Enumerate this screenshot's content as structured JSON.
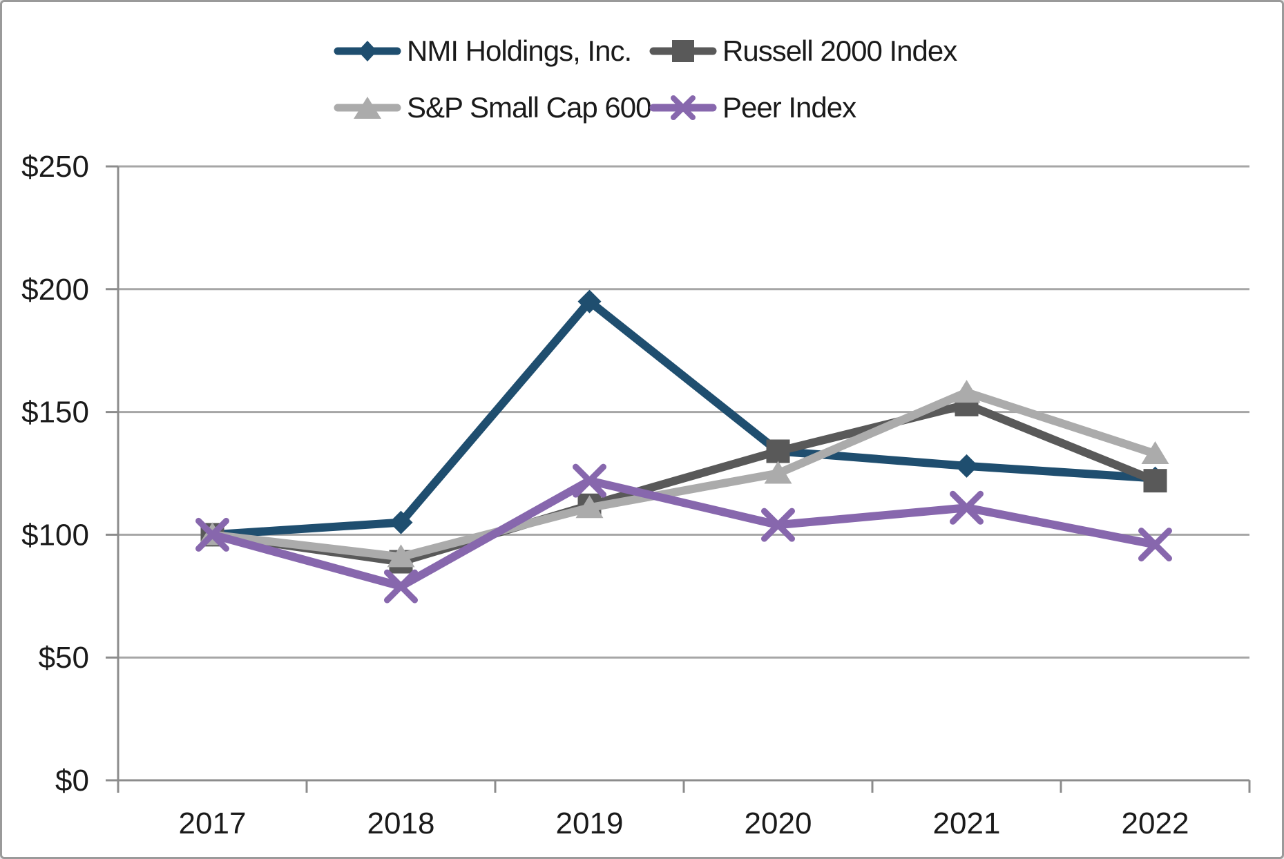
{
  "chart_data": {
    "type": "line",
    "title": "",
    "categories": [
      "2017",
      "2018",
      "2019",
      "2020",
      "2021",
      "2022"
    ],
    "series": [
      {
        "name": "NMI Holdings, Inc.",
        "marker": "diamond",
        "color": "#1F4E6F",
        "values": [
          100,
          105,
          195,
          134,
          128,
          123
        ]
      },
      {
        "name": "Russell 2000 Index",
        "marker": "square",
        "color": "#595959",
        "values": [
          100,
          89,
          112,
          134,
          153,
          122
        ]
      },
      {
        "name": "S&P Small Cap 600",
        "marker": "triangle",
        "color": "#ABABAB",
        "values": [
          100,
          91,
          111,
          125,
          158,
          133
        ]
      },
      {
        "name": "Peer Index",
        "marker": "x",
        "color": "#8767AD",
        "values": [
          100,
          79,
          122,
          104,
          111,
          96
        ]
      }
    ],
    "y_axis": {
      "ticks": [
        "$0",
        "$50",
        "$100",
        "$150",
        "$200",
        "$250"
      ],
      "min": 0,
      "max": 250,
      "step": 50,
      "currency_format": "$"
    },
    "x_axis": {
      "label": ""
    },
    "legend_position": "top",
    "grid": true
  },
  "colors": {
    "background": "#FFFFFF",
    "frame_border": "#9A9A9A",
    "gridline": "#A6A6A6",
    "axis": "#8C8C8C",
    "text": "#1A1A1A"
  }
}
